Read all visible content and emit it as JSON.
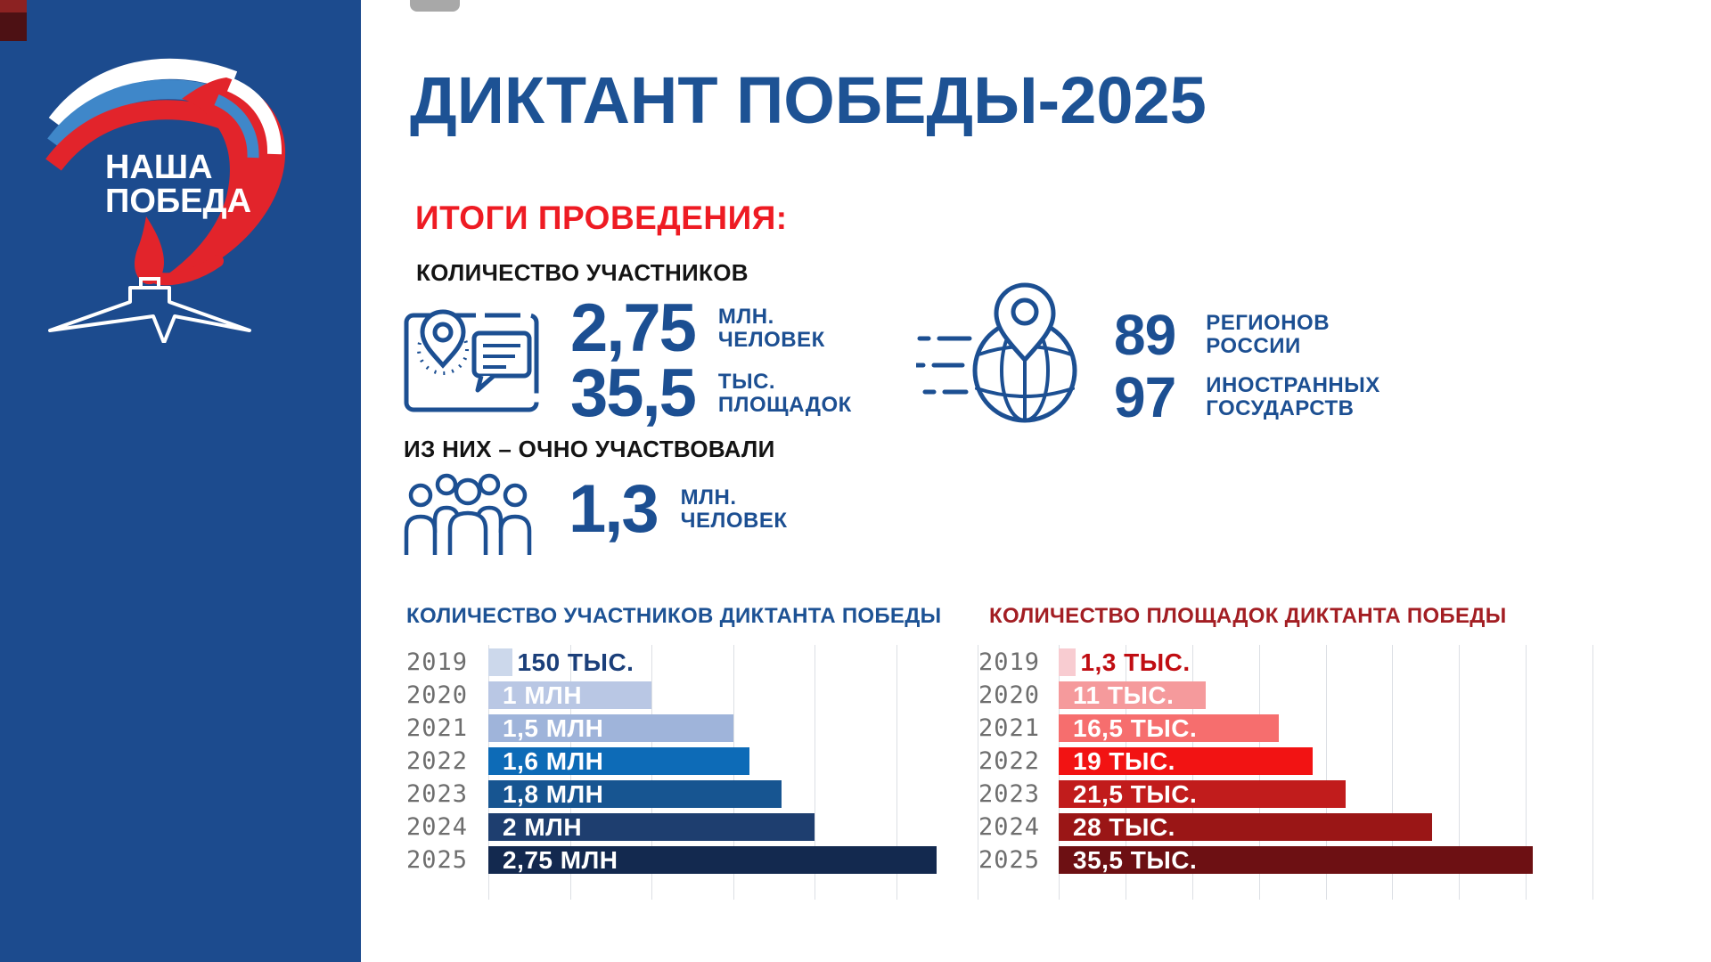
{
  "header": {
    "title": "ДИКТАНТ ПОБЕДЫ-2025"
  },
  "logo": {
    "line1": "НАША",
    "line2": "ПОБЕДА"
  },
  "results": {
    "heading": "ИТОГИ ПРОВЕДЕНИЯ:",
    "participants_label": "КОЛИЧЕСТВО УЧАСТНИКОВ",
    "participants": {
      "value": "2,75",
      "unit_line1": "МЛН.",
      "unit_line2": "ЧЕЛОВЕК"
    },
    "venues": {
      "value": "35,5",
      "unit_line1": "ТЫС.",
      "unit_line2": "ПЛОЩАДОК"
    },
    "offline_label": "ИЗ НИХ – ОЧНО УЧАСТВОВАЛИ",
    "offline": {
      "value": "1,3",
      "unit_line1": "МЛН.",
      "unit_line2": "ЧЕЛОВЕК"
    },
    "geography": {
      "regions": {
        "value": "89",
        "label_line1": "РЕГИОНОВ",
        "label_line2": "РОССИИ"
      },
      "countries": {
        "value": "97",
        "label_line1": "ИНОСТРАННЫХ",
        "label_line2": "ГОСУДАРСТВ"
      }
    }
  },
  "colors": {
    "sidebar_blue": "#1c4b8e",
    "accent_blue": "#1c4f92",
    "title_blue": "#1d5294",
    "accent_red": "#ee1b23",
    "flag_blue": "#3f87c9",
    "flag_red": "#e2242b"
  },
  "chart_data": [
    {
      "type": "bar",
      "orientation": "horizontal",
      "title": "КОЛИЧЕСТВО УЧАСТНИКОВ ДИКТАНТА ПОБЕДЫ",
      "title_color": "#1d5294",
      "categories": [
        "2019",
        "2020",
        "2021",
        "2022",
        "2023",
        "2024",
        "2025"
      ],
      "values": [
        0.15,
        1,
        1.5,
        1.6,
        1.8,
        2,
        2.75
      ],
      "value_unit": "млн человек",
      "bar_labels": [
        "150 ТЫС.",
        "1 МЛН",
        "1,5 МЛН",
        "1,6 МЛН",
        "1,8 МЛН",
        "2 МЛН",
        "2,75 МЛН"
      ],
      "bar_colors": [
        "#ccd8eb",
        "#b9c7e4",
        "#9fb4da",
        "#0d6bb7",
        "#175591",
        "#1e3e6f",
        "#13294f"
      ],
      "first_label_outside": true,
      "outside_label_color": "#1b3f7a",
      "xlim": [
        0,
        3
      ],
      "grid_step": 0.5,
      "grid": true,
      "legend": false
    },
    {
      "type": "bar",
      "orientation": "horizontal",
      "title": "КОЛИЧЕСТВО ПЛОЩАДОК ДИКТАНТА ПОБЕДЫ",
      "title_color": "#a31e23",
      "categories": [
        "2019",
        "2020",
        "2021",
        "2022",
        "2023",
        "2024",
        "2025"
      ],
      "values": [
        1.3,
        11,
        16.5,
        19,
        21.5,
        28,
        35.5
      ],
      "value_unit": "тыс. площадок",
      "bar_labels": [
        "1,3 ТЫС.",
        "11 ТЫС.",
        "16,5 ТЫС.",
        "19 ТЫС.",
        "21,5 ТЫС.",
        "28 ТЫС.",
        "35,5 ТЫС."
      ],
      "bar_colors": [
        "#f8ccd1",
        "#f59a9c",
        "#f66e6e",
        "#f21313",
        "#c11c1c",
        "#9a1616",
        "#6d1013"
      ],
      "first_label_outside": true,
      "outside_label_color": "#c00d12",
      "xlim": [
        0,
        40
      ],
      "grid_step": 5,
      "grid": true,
      "legend": false
    }
  ]
}
